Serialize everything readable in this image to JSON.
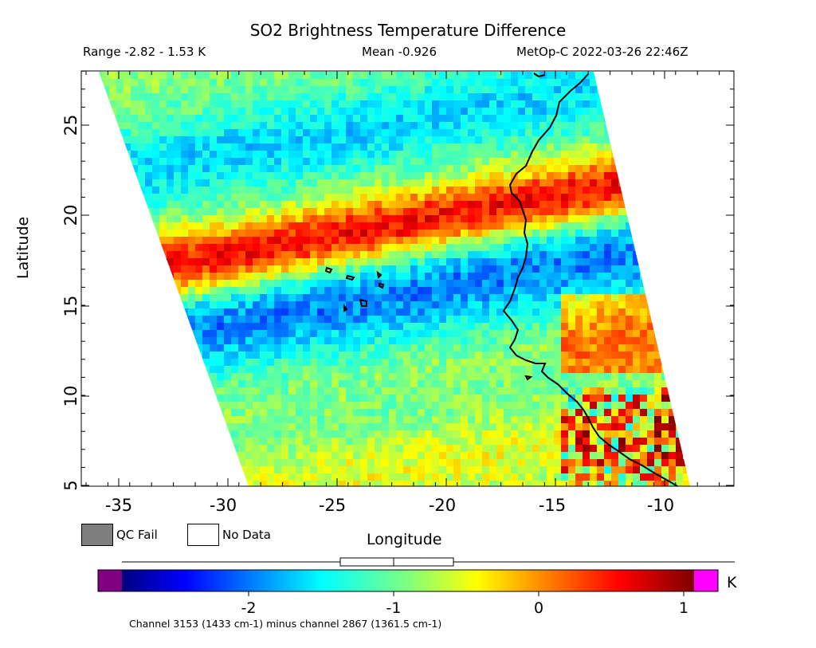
{
  "header": {
    "title": "SO2 Brightness Temperature Difference",
    "range": "Range -2.82 - 1.53 K",
    "mean": "Mean -0.926",
    "satellite": "MetOp-C 2022-03-26 22:46Z"
  },
  "axes": {
    "xlabel": "Longitude",
    "ylabel": "Latitude",
    "x_ticks": [
      "-35",
      "-30",
      "-25",
      "-20",
      "-15",
      "-10"
    ],
    "y_ticks": [
      "5",
      "10",
      "15",
      "20",
      "25"
    ]
  },
  "legend": {
    "qc_fail": "QC Fail",
    "no_data": "No Data",
    "qc_color": "#7f7f7f"
  },
  "colorbar": {
    "ticks": [
      "-2",
      "-1",
      "0",
      "1"
    ],
    "unit": "K",
    "below_color": "#800080",
    "above_color": "#ff00ff"
  },
  "footnote": "Channel 3153 (1433 cm-1) minus channel 2867 (1361.5 cm-1)",
  "chart_data": {
    "type": "heatmap",
    "title": "SO2 Brightness Temperature Difference",
    "xlabel": "Longitude",
    "ylabel": "Latitude",
    "xlim": [
      -36.5,
      -7
    ],
    "ylim": [
      5,
      28
    ],
    "value_range": [
      -2.82,
      1.53
    ],
    "mean": -0.926,
    "colorbar_range": [
      -2.6,
      1.05
    ],
    "unit": "K"
  }
}
